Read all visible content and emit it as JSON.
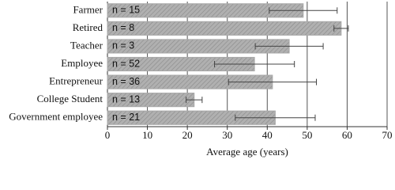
{
  "chart_data": {
    "type": "bar",
    "orientation": "horizontal",
    "x_label": "Average age (years)",
    "categories": [
      "Farmer",
      "Retired",
      "Teacher",
      "Employee",
      "Entrepreneur",
      "College Student",
      "Government employee"
    ],
    "values": [
      49,
      58.5,
      45.5,
      36.8,
      41.3,
      21.7,
      42
    ],
    "errors": [
      8.5,
      1.8,
      8.5,
      10,
      11,
      2,
      10
    ],
    "bar_annotations": [
      "n = 15",
      "n = 8",
      "n = 3",
      "n = 52",
      "n = 36",
      "n = 13",
      "n = 21"
    ],
    "color": "#a8a8a8",
    "xlim": [
      0,
      70
    ],
    "xticks": [
      0,
      10,
      20,
      30,
      40,
      50,
      60,
      70
    ],
    "grid": true
  }
}
